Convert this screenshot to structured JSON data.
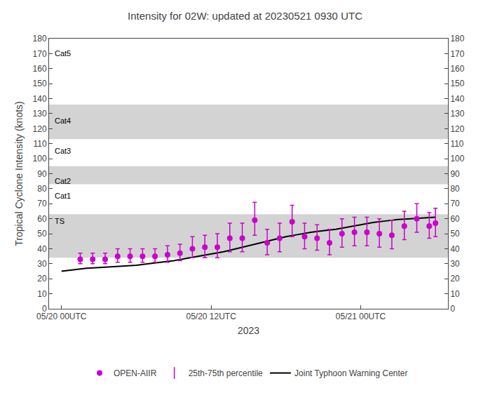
{
  "chart_data": {
    "type": "line",
    "title": "Intensity for 02W: updated at 20230521 0930 UTC",
    "xlabel": "2023",
    "ylabel": "Tropical Cyclone Intensity (knots)",
    "xlim": [
      -1,
      31
    ],
    "xticks": [
      {
        "value": 0,
        "label": "05/20 00UTC"
      },
      {
        "value": 12,
        "label": "05/20 12UTC"
      },
      {
        "value": 24,
        "label": "05/21 00UTC"
      }
    ],
    "ylim": [
      0,
      180
    ],
    "yticks": [
      0,
      10,
      20,
      30,
      40,
      50,
      60,
      70,
      80,
      90,
      100,
      110,
      120,
      130,
      140,
      150,
      160,
      170,
      180
    ],
    "y2lim": [
      0,
      180
    ],
    "y2ticks": [
      0,
      10,
      20,
      30,
      40,
      50,
      60,
      70,
      80,
      90,
      100,
      110,
      120,
      130,
      140,
      150,
      160,
      170,
      180
    ],
    "grid": false,
    "legend": "bottom",
    "bands": [
      [
        34,
        63
      ],
      [
        83,
        95
      ],
      [
        113,
        136
      ]
    ],
    "band_color": "#d3d3d3",
    "annotations": [
      {
        "y": 62,
        "text": "TS"
      },
      {
        "y": 79,
        "text": "Cat1"
      },
      {
        "y": 89,
        "text": "Cat2"
      },
      {
        "y": 109,
        "text": "Cat3"
      },
      {
        "y": 129,
        "text": "Cat4"
      },
      {
        "y": 174,
        "text": "Cat5"
      }
    ],
    "series": [
      {
        "name": "Joint Typhoon Warning Center",
        "type": "line",
        "color": "#000000",
        "x": [
          0,
          1,
          2,
          3,
          4,
          5,
          6,
          7,
          8,
          9,
          10,
          11,
          12,
          13,
          14,
          15,
          16,
          17,
          18,
          19,
          20,
          21,
          22,
          23,
          24,
          25,
          26,
          27,
          28,
          29,
          30
        ],
        "values": [
          25,
          26,
          27,
          27.5,
          28,
          28.5,
          29,
          30,
          31,
          32,
          33.5,
          35,
          36.5,
          38,
          40,
          42,
          44,
          46,
          48,
          49.5,
          51,
          52,
          53,
          54.5,
          56,
          57.5,
          58.5,
          59.5,
          60,
          60.5,
          61
        ]
      },
      {
        "name": "OPEN-AIIR",
        "type": "scatter",
        "color": "#cc00cc",
        "marker": "circle",
        "error_name": "25th-75th percentile",
        "x": [
          1.5,
          2.5,
          3.5,
          4.5,
          5.5,
          6.5,
          7.5,
          8.5,
          9.5,
          10.5,
          11.5,
          12.5,
          13.5,
          14.5,
          15.5,
          16.5,
          17.5,
          18.5,
          19.5,
          20.5,
          21.5,
          22.5,
          23.5,
          24.5,
          25.5,
          26.5,
          27.5,
          28.5,
          29.5,
          30.0
        ],
        "values": [
          33,
          33,
          33,
          35,
          35,
          35,
          35,
          36,
          37,
          40,
          41,
          41,
          47,
          47,
          59,
          44,
          47,
          58,
          48,
          47,
          44,
          50,
          51,
          51,
          50,
          49,
          55,
          60,
          55,
          57
        ],
        "error_low": [
          3,
          3,
          3,
          4,
          4,
          4,
          4,
          5,
          5,
          6,
          7,
          7,
          9,
          9,
          10,
          8,
          9,
          10,
          8,
          8,
          8,
          9,
          9,
          9,
          9,
          9,
          9,
          9,
          8,
          9
        ],
        "error_high": [
          4,
          4,
          4,
          5,
          5,
          5,
          5,
          6,
          6,
          8,
          8,
          9,
          10,
          10,
          12,
          9,
          10,
          11,
          9,
          9,
          9,
          10,
          10,
          10,
          10,
          10,
          10,
          10,
          9,
          10
        ]
      }
    ]
  }
}
